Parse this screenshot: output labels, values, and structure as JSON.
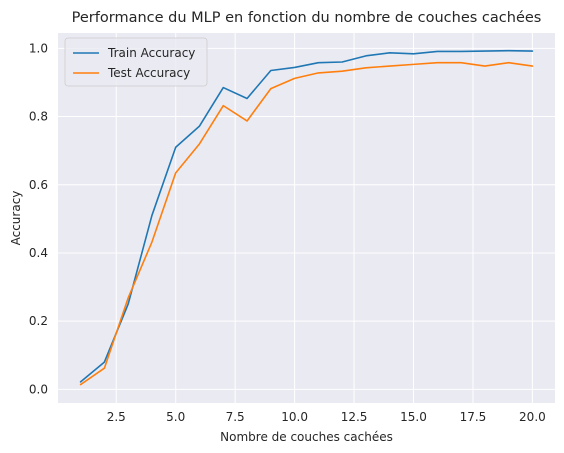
{
  "chart_data": {
    "type": "line",
    "title": "Performance du MLP en fonction du nombre de couches cachées",
    "xlabel": "Nombre de couches cachées",
    "ylabel": "Accuracy",
    "xlim": [
      0.05,
      20.95
    ],
    "ylim": [
      -0.04,
      1.045
    ],
    "x_ticks": [
      "2.5",
      "5.0",
      "7.5",
      "10.0",
      "12.5",
      "15.0",
      "17.5",
      "20.0"
    ],
    "x_tick_values": [
      2.5,
      5.0,
      7.5,
      10.0,
      12.5,
      15.0,
      17.5,
      20.0
    ],
    "y_ticks": [
      "0.0",
      "0.2",
      "0.4",
      "0.6",
      "0.8",
      "1.0"
    ],
    "y_tick_values": [
      0.0,
      0.2,
      0.4,
      0.6,
      0.8,
      1.0
    ],
    "grid": true,
    "legend_position": "top-left",
    "background": "#eaeaf2",
    "x": [
      1,
      2,
      3,
      4,
      5,
      6,
      7,
      8,
      9,
      10,
      11,
      12,
      13,
      14,
      15,
      16,
      17,
      18,
      19,
      20
    ],
    "series": [
      {
        "name": "Train Accuracy",
        "color": "#1f77b4",
        "values": [
          0.022,
          0.08,
          0.25,
          0.51,
          0.71,
          0.772,
          0.885,
          0.853,
          0.935,
          0.944,
          0.958,
          0.96,
          0.978,
          0.987,
          0.984,
          0.991,
          0.991,
          0.992,
          0.993,
          0.992
        ]
      },
      {
        "name": "Test Accuracy",
        "color": "#ff7f0e",
        "values": [
          0.014,
          0.062,
          0.268,
          0.432,
          0.635,
          0.72,
          0.832,
          0.787,
          0.882,
          0.912,
          0.928,
          0.933,
          0.943,
          0.948,
          0.953,
          0.958,
          0.958,
          0.948,
          0.958,
          0.948
        ]
      }
    ]
  }
}
